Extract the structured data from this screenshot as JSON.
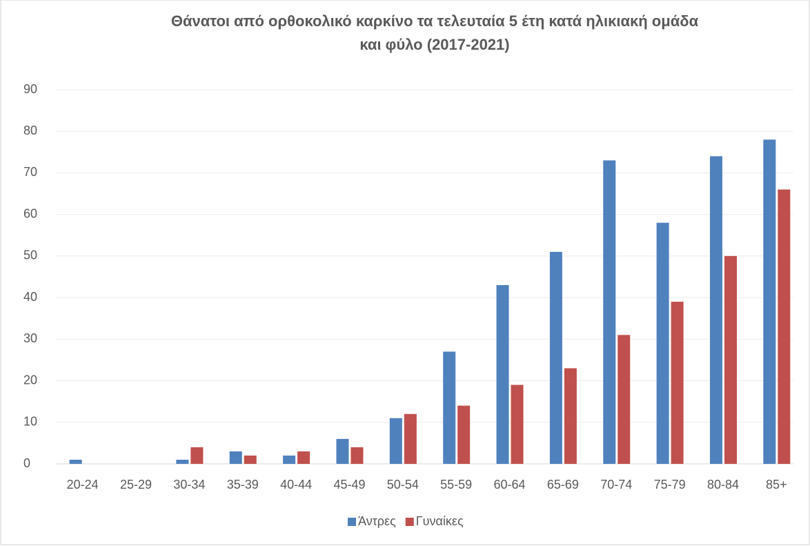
{
  "chart_data": {
    "type": "bar",
    "title": "Θάνατοι από ορθοκολικό καρκίνο τα τελευταία 5 έτη κατά ηλικιακή ομάδα\nκαι φύλο (2017-2021)",
    "categories": [
      "20-24",
      "25-29",
      "30-34",
      "35-39",
      "40-44",
      "45-49",
      "50-54",
      "55-59",
      "60-64",
      "65-69",
      "70-74",
      "75-79",
      "80-84",
      "85+"
    ],
    "series": [
      {
        "name": "Άντρες",
        "color": "#4f81bd",
        "values": [
          1,
          0,
          1,
          3,
          2,
          6,
          11,
          27,
          43,
          51,
          73,
          58,
          74,
          78
        ]
      },
      {
        "name": "Γυναίκες",
        "color": "#c0504d",
        "values": [
          0,
          0,
          4,
          2,
          3,
          4,
          12,
          14,
          19,
          23,
          31,
          39,
          50,
          66
        ]
      }
    ],
    "ylim": [
      0,
      90
    ],
    "yticks": [
      0,
      10,
      20,
      30,
      40,
      50,
      60,
      70,
      80,
      90
    ],
    "grid": true,
    "legend": "bottom"
  }
}
